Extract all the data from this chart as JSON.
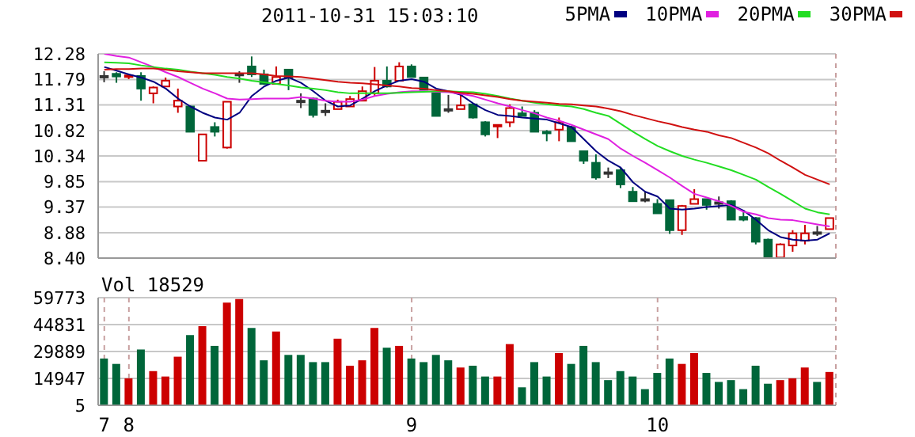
{
  "chart_data": [
    {
      "type": "candlestick",
      "title": "2011-10-31 15:03:10",
      "categories": [
        "7",
        null,
        "8",
        null,
        null,
        null,
        null,
        null,
        null,
        null,
        null,
        null,
        null,
        null,
        null,
        null,
        null,
        null,
        null,
        null,
        null,
        null,
        null,
        null,
        null,
        "9",
        null,
        null,
        null,
        null,
        null,
        null,
        null,
        null,
        null,
        null,
        null,
        null,
        null,
        null,
        null,
        null,
        null,
        null,
        null,
        "10",
        null,
        null,
        null,
        null,
        null,
        null,
        null,
        null,
        null,
        null,
        null,
        null,
        null,
        null
      ],
      "ohlc": [
        [
          11.86,
          11.95,
          11.74,
          11.86
        ],
        [
          11.9,
          11.93,
          11.73,
          11.85
        ],
        [
          11.86,
          11.9,
          11.8,
          11.87
        ],
        [
          11.86,
          11.93,
          11.39,
          11.62
        ],
        [
          11.53,
          11.66,
          11.34,
          11.64
        ],
        [
          11.66,
          11.83,
          11.66,
          11.77
        ],
        [
          11.28,
          11.62,
          11.16,
          11.39
        ],
        [
          11.28,
          11.3,
          10.8,
          10.8
        ],
        [
          10.25,
          10.75,
          10.25,
          10.75
        ],
        [
          10.89,
          10.98,
          10.71,
          10.8
        ],
        [
          10.5,
          11.37,
          10.48,
          11.37
        ],
        [
          11.9,
          11.95,
          11.73,
          11.9
        ],
        [
          12.04,
          12.23,
          11.84,
          11.89
        ],
        [
          11.89,
          11.98,
          11.69,
          11.71
        ],
        [
          11.71,
          12.04,
          11.71,
          11.84
        ],
        [
          11.98,
          11.98,
          11.59,
          11.83
        ],
        [
          11.39,
          11.53,
          11.25,
          11.39
        ],
        [
          11.43,
          11.45,
          11.07,
          11.12
        ],
        [
          11.2,
          11.34,
          11.1,
          11.2
        ],
        [
          11.23,
          11.41,
          11.23,
          11.37
        ],
        [
          11.28,
          11.48,
          11.28,
          11.42
        ],
        [
          11.39,
          11.66,
          11.39,
          11.57
        ],
        [
          11.53,
          12.03,
          11.48,
          11.77
        ],
        [
          11.77,
          12.04,
          11.64,
          11.66
        ],
        [
          11.77,
          12.12,
          11.77,
          12.04
        ],
        [
          12.04,
          12.08,
          11.84,
          11.84
        ],
        [
          11.83,
          11.84,
          11.6,
          11.6
        ],
        [
          11.53,
          11.55,
          11.1,
          11.1
        ],
        [
          11.23,
          11.5,
          11.16,
          11.23
        ],
        [
          11.23,
          11.53,
          11.23,
          11.3
        ],
        [
          11.32,
          11.35,
          11.05,
          11.07
        ],
        [
          10.98,
          11.0,
          10.71,
          10.75
        ],
        [
          10.92,
          10.93,
          10.68,
          10.93
        ],
        [
          10.98,
          11.32,
          10.89,
          11.25
        ],
        [
          11.15,
          11.28,
          11.1,
          11.1
        ],
        [
          11.16,
          11.21,
          10.8,
          10.8
        ],
        [
          10.8,
          10.83,
          10.62,
          10.79
        ],
        [
          10.84,
          11.07,
          10.62,
          10.98
        ],
        [
          10.89,
          10.91,
          10.62,
          10.62
        ],
        [
          10.43,
          10.43,
          10.19,
          10.25
        ],
        [
          10.21,
          10.37,
          9.89,
          9.93
        ],
        [
          10.03,
          10.12,
          9.92,
          10.03
        ],
        [
          10.07,
          10.13,
          9.73,
          9.8
        ],
        [
          9.66,
          9.75,
          9.48,
          9.48
        ],
        [
          9.52,
          9.66,
          9.46,
          9.52
        ],
        [
          9.43,
          9.52,
          9.25,
          9.25
        ],
        [
          9.5,
          9.5,
          8.86,
          8.93
        ],
        [
          8.93,
          9.41,
          8.84,
          9.39
        ],
        [
          9.43,
          9.71,
          9.43,
          9.52
        ],
        [
          9.52,
          9.52,
          9.32,
          9.41
        ],
        [
          9.46,
          9.57,
          9.34,
          9.46
        ],
        [
          9.48,
          9.5,
          9.13,
          9.13
        ],
        [
          9.18,
          9.28,
          9.1,
          9.13
        ],
        [
          9.16,
          9.18,
          8.66,
          8.71
        ],
        [
          8.75,
          8.77,
          8.43,
          8.43
        ],
        [
          8.41,
          8.68,
          8.4,
          8.66
        ],
        [
          8.64,
          8.93,
          8.52,
          8.87
        ],
        [
          8.73,
          9.03,
          8.66,
          8.87
        ],
        [
          8.89,
          9.01,
          8.82,
          8.89
        ],
        [
          8.95,
          9.16,
          8.95,
          9.16
        ]
      ],
      "colors": [
        "#333333",
        "#00663a",
        "#cc0000",
        "#00663a",
        "#cc0000",
        "#cc0000",
        "#cc0000",
        "#00663a",
        "#cc0000",
        "#00663a",
        "#cc0000",
        "#333333",
        "#00663a",
        "#00663a",
        "#cc0000",
        "#00663a",
        "#333333",
        "#00663a",
        "#333333",
        "#cc0000",
        "#cc0000",
        "#cc0000",
        "#cc0000",
        "#00663a",
        "#cc0000",
        "#00663a",
        "#00663a",
        "#00663a",
        "#333333",
        "#cc0000",
        "#00663a",
        "#00663a",
        "#cc0000",
        "#cc0000",
        "#00663a",
        "#00663a",
        "#00663a",
        "#cc0000",
        "#00663a",
        "#00663a",
        "#00663a",
        "#333333",
        "#00663a",
        "#00663a",
        "#333333",
        "#00663a",
        "#00663a",
        "#cc0000",
        "#cc0000",
        "#00663a",
        "#333333",
        "#00663a",
        "#00663a",
        "#00663a",
        "#00663a",
        "#cc0000",
        "#cc0000",
        "#cc0000",
        "#333333",
        "#cc0000"
      ],
      "series": [
        {
          "type": "line",
          "name": "5PMA",
          "color": "#000080",
          "values": [
            12.03,
            11.96,
            11.89,
            11.83,
            11.75,
            11.62,
            11.43,
            11.28,
            11.16,
            11.07,
            11.03,
            11.16,
            11.48,
            11.66,
            11.77,
            11.83,
            11.73,
            11.57,
            11.39,
            11.28,
            11.3,
            11.43,
            11.57,
            11.68,
            11.77,
            11.8,
            11.75,
            11.62,
            11.57,
            11.5,
            11.34,
            11.21,
            11.12,
            11.1,
            11.07,
            11.05,
            11.03,
            10.96,
            10.89,
            10.66,
            10.43,
            10.25,
            10.12,
            9.84,
            9.66,
            9.57,
            9.34,
            9.32,
            9.34,
            9.37,
            9.39,
            9.41,
            9.3,
            9.13,
            8.93,
            8.8,
            8.75,
            8.73,
            8.75,
            8.87
          ]
        },
        {
          "type": "line",
          "name": "10PMA",
          "color": "#e020e0",
          "values": [
            12.28,
            12.24,
            12.21,
            12.12,
            12.03,
            11.93,
            11.84,
            11.73,
            11.62,
            11.53,
            11.43,
            11.41,
            11.42,
            11.43,
            11.43,
            11.43,
            11.46,
            11.43,
            11.39,
            11.37,
            11.37,
            11.41,
            11.48,
            11.52,
            11.55,
            11.57,
            11.57,
            11.56,
            11.55,
            11.52,
            11.48,
            11.41,
            11.34,
            11.28,
            11.21,
            11.15,
            11.07,
            11.01,
            10.93,
            10.84,
            10.75,
            10.66,
            10.48,
            10.34,
            10.21,
            10.07,
            9.93,
            9.77,
            9.62,
            9.55,
            9.48,
            9.39,
            9.28,
            9.23,
            9.16,
            9.13,
            9.12,
            9.08,
            9.04,
            9.0
          ]
        },
        {
          "type": "line",
          "name": "20PMA",
          "color": "#22dd22",
          "values": [
            12.12,
            12.11,
            12.1,
            12.06,
            12.03,
            12.0,
            11.98,
            11.94,
            11.91,
            11.88,
            11.84,
            11.81,
            11.77,
            11.74,
            11.71,
            11.68,
            11.64,
            11.62,
            11.59,
            11.55,
            11.53,
            11.53,
            11.53,
            11.53,
            11.54,
            11.55,
            11.56,
            11.57,
            11.57,
            11.56,
            11.55,
            11.52,
            11.48,
            11.43,
            11.39,
            11.35,
            11.32,
            11.3,
            11.28,
            11.23,
            11.16,
            11.1,
            10.95,
            10.8,
            10.66,
            10.53,
            10.43,
            10.34,
            10.27,
            10.21,
            10.14,
            10.07,
            9.98,
            9.89,
            9.75,
            9.62,
            9.48,
            9.34,
            9.27,
            9.23
          ]
        },
        {
          "type": "line",
          "name": "30PMA",
          "color": "#d01010",
          "values": [
            11.98,
            11.99,
            11.99,
            12.0,
            12.0,
            11.98,
            11.95,
            11.93,
            11.91,
            11.91,
            11.91,
            11.91,
            11.91,
            11.89,
            11.86,
            11.85,
            11.84,
            11.81,
            11.78,
            11.75,
            11.73,
            11.72,
            11.7,
            11.68,
            11.66,
            11.63,
            11.62,
            11.59,
            11.57,
            11.54,
            11.52,
            11.49,
            11.46,
            11.42,
            11.39,
            11.37,
            11.35,
            11.33,
            11.32,
            11.3,
            11.28,
            11.24,
            11.19,
            11.12,
            11.06,
            11.0,
            10.95,
            10.89,
            10.84,
            10.8,
            10.73,
            10.68,
            10.59,
            10.5,
            10.39,
            10.25,
            10.12,
            9.98,
            9.89,
            9.8
          ]
        }
      ],
      "ylim": [
        8.4,
        12.28
      ],
      "yticks": [
        {
          "value": 8.4,
          "label": "8.40"
        },
        8.88,
        9.37,
        9.85,
        10.34,
        10.82,
        11.31,
        11.79,
        12.28
      ],
      "grid": true,
      "legend": "top right",
      "tick_labels": "y"
    },
    {
      "type": "bar",
      "title": "Vol 18529",
      "categories": [
        "7",
        null,
        "8",
        null,
        null,
        null,
        null,
        null,
        null,
        null,
        null,
        null,
        null,
        null,
        null,
        null,
        null,
        null,
        null,
        null,
        null,
        null,
        null,
        null,
        null,
        "9",
        null,
        null,
        null,
        null,
        null,
        null,
        null,
        null,
        null,
        null,
        null,
        null,
        null,
        null,
        null,
        null,
        null,
        null,
        null,
        "10",
        null,
        null,
        null,
        null,
        null,
        null,
        null,
        null,
        null,
        null,
        null,
        null,
        null,
        null
      ],
      "values": [
        26000,
        23000,
        15000,
        31000,
        19000,
        16000,
        27000,
        39000,
        44000,
        33000,
        57000,
        59000,
        43000,
        25000,
        41000,
        28000,
        28000,
        24000,
        24000,
        37000,
        22000,
        25000,
        43000,
        32000,
        33000,
        26000,
        24000,
        28000,
        25000,
        21000,
        22000,
        16000,
        16000,
        34000,
        10000,
        24000,
        16000,
        29000,
        23000,
        33000,
        24000,
        14000,
        19000,
        16000,
        9000,
        18000,
        26000,
        23000,
        29000,
        18000,
        13000,
        14000,
        9000,
        22000,
        12000,
        14000,
        15000,
        21000,
        13000,
        18529
      ],
      "colors": [
        "#00663a",
        "#00663a",
        "#cc0000",
        "#00663a",
        "#cc0000",
        "#cc0000",
        "#cc0000",
        "#00663a",
        "#cc0000",
        "#00663a",
        "#cc0000",
        "#cc0000",
        "#00663a",
        "#00663a",
        "#cc0000",
        "#00663a",
        "#00663a",
        "#00663a",
        "#00663a",
        "#cc0000",
        "#cc0000",
        "#cc0000",
        "#cc0000",
        "#00663a",
        "#cc0000",
        "#00663a",
        "#00663a",
        "#00663a",
        "#00663a",
        "#cc0000",
        "#00663a",
        "#00663a",
        "#cc0000",
        "#cc0000",
        "#00663a",
        "#00663a",
        "#00663a",
        "#cc0000",
        "#00663a",
        "#00663a",
        "#00663a",
        "#00663a",
        "#00663a",
        "#00663a",
        "#00663a",
        "#00663a",
        "#00663a",
        "#cc0000",
        "#cc0000",
        "#00663a",
        "#00663a",
        "#00663a",
        "#00663a",
        "#00663a",
        "#00663a",
        "#cc0000",
        "#cc0000",
        "#cc0000",
        "#00663a",
        "#cc0000"
      ],
      "ylim": [
        5,
        59773
      ],
      "yticks": [
        5,
        14947,
        29889,
        44831,
        59773
      ],
      "grid": true
    }
  ]
}
